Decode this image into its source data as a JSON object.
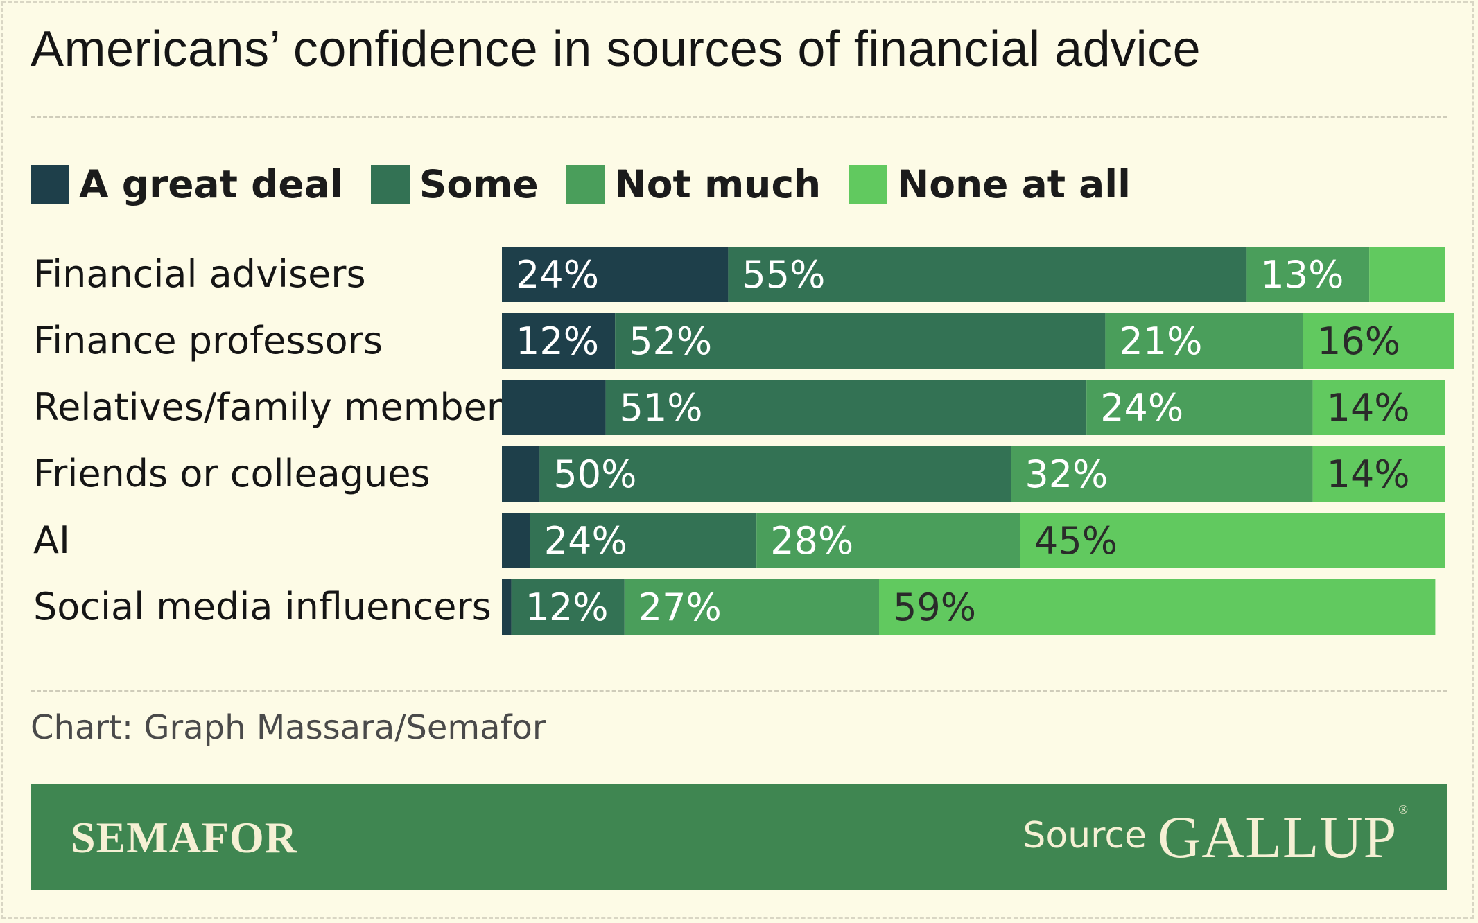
{
  "title": "Americans’ confidence in sources of financial advice",
  "credit": "Chart: Graph Massara/Semafor",
  "footer": {
    "brand": "SEMAFOR",
    "source_label": "Source",
    "source_name": "GALLUP"
  },
  "colors": {
    "background": "#fdfbe6",
    "great_deal": "#1e3f4a",
    "some": "#337254",
    "not_much": "#4a9e5b",
    "none_at_all": "#61c95f",
    "footer": "#3f8651"
  },
  "chart_data": {
    "type": "bar",
    "orientation": "horizontal",
    "stacked": true,
    "xlim": [
      0,
      100
    ],
    "grid": false,
    "legend_position": "top-left",
    "categories": [
      "Financial advisers",
      "Finance professors",
      "Relatives/family members",
      "Friends or colleagues",
      "AI",
      "Social media influencers"
    ],
    "series": [
      {
        "name": "A great deal",
        "color": "#1e3f4a",
        "values": [
          24,
          12,
          11,
          4,
          3,
          1
        ],
        "labels": [
          "24%",
          "12%",
          "",
          "",
          "",
          ""
        ]
      },
      {
        "name": "Some",
        "color": "#337254",
        "values": [
          55,
          52,
          51,
          50,
          24,
          12
        ],
        "labels": [
          "55%",
          "52%",
          "51%",
          "50%",
          "24%",
          "12%"
        ]
      },
      {
        "name": "Not much",
        "color": "#4a9e5b",
        "values": [
          13,
          21,
          24,
          32,
          28,
          27
        ],
        "labels": [
          "13%",
          "21%",
          "24%",
          "32%",
          "28%",
          "27%"
        ]
      },
      {
        "name": "None at all",
        "color": "#61c95f",
        "values": [
          8,
          16,
          14,
          14,
          45,
          59
        ],
        "labels": [
          "",
          "16%",
          "14%",
          "14%",
          "45%",
          "59%"
        ]
      }
    ],
    "label_colors": [
      "#ffffff",
      "#ffffff",
      "#ffffff",
      "#2a2a2a"
    ]
  }
}
